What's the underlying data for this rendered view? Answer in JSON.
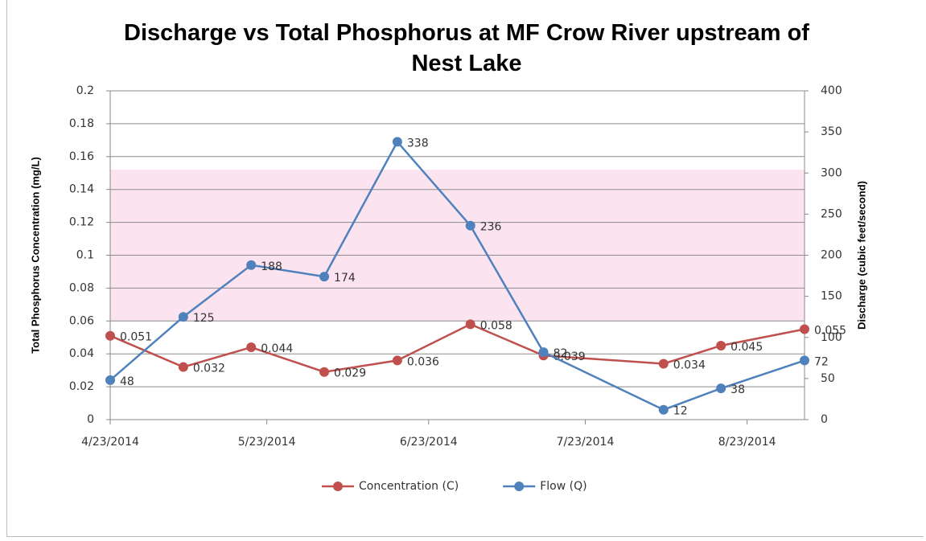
{
  "chart_data": {
    "type": "line",
    "title": "Discharge vs Total Phosphorus at MF Crow River upstream of Nest Lake",
    "y_label": "Total Phosphorus  Concentration (mg/L)",
    "y2_label": "Discharge  (cubic feet/second)",
    "x": [
      "4/23/2014",
      "5/7/2014",
      "5/20/2014",
      "6/3/2014",
      "6/17/2014",
      "7/1/2014",
      "7/15/2014",
      "8/7/2014",
      "8/18/2014",
      "9/3/2014"
    ],
    "xlim": [
      "4/23/2014",
      "9/3/2014"
    ],
    "xticks": [
      "4/23/2014",
      "5/23/2014",
      "6/23/2014",
      "7/23/2014",
      "8/23/2014"
    ],
    "ylim": [
      0,
      0.2
    ],
    "yticks": [
      0,
      0.02,
      0.04,
      0.06,
      0.08,
      0.1,
      0.12,
      0.14,
      0.16,
      0.18,
      0.2
    ],
    "y2lim": [
      0,
      400
    ],
    "y2ticks": [
      0,
      50,
      100,
      150,
      200,
      250,
      300,
      350,
      400
    ],
    "grid": true,
    "shaded_range": {
      "from": 0.06,
      "to": 0.152,
      "color": "#fbe3f0"
    },
    "legend": "bottom",
    "series": [
      {
        "name": "Concentration (C)",
        "color": "#c0504d",
        "values": [
          0.051,
          0.032,
          0.044,
          0.029,
          0.036,
          0.058,
          0.039,
          0.034,
          0.045,
          0.055
        ]
      },
      {
        "name": "Flow (Q)",
        "color": "#4f81bd",
        "axis": "y2",
        "values": [
          48,
          125,
          188,
          174,
          338,
          236,
          82,
          12,
          38,
          72
        ]
      }
    ]
  }
}
